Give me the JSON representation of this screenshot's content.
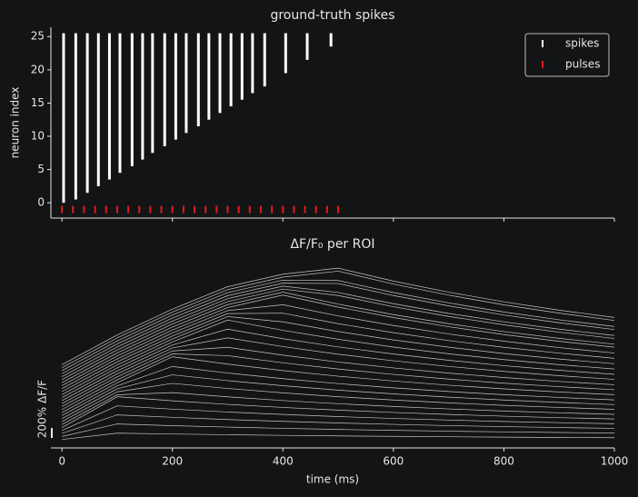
{
  "chart_data": [
    {
      "type": "raster",
      "title": "ground-truth spikes",
      "y_label": "neuron index",
      "xlim": [
        -20,
        1000
      ],
      "xticks": [
        0,
        200,
        400,
        600,
        800,
        1000
      ],
      "ylim": [
        -2.3,
        26.4
      ],
      "yticks": [
        0,
        5,
        10,
        15,
        20,
        25
      ],
      "legend": "upper right",
      "series": [
        {
          "name": "spikes",
          "color": "#ffffff",
          "x": [
            3,
            25,
            46,
            66,
            86,
            105,
            127,
            146,
            164,
            186,
            206,
            225,
            247,
            266,
            286,
            306,
            326,
            345,
            367,
            405,
            444,
            487
          ],
          "ymin": [
            0,
            0.5,
            1.5,
            2.5,
            3.5,
            4.5,
            5.5,
            6.5,
            7.5,
            8.5,
            9.5,
            10.5,
            11.5,
            12.5,
            13.5,
            14.5,
            15.5,
            16.5,
            17.5,
            19.5,
            21.5,
            23.5
          ],
          "ymax": [
            25.5,
            25.5,
            25.5,
            25.5,
            25.5,
            25.5,
            25.5,
            25.5,
            25.5,
            25.5,
            25.5,
            25.5,
            25.5,
            25.5,
            25.5,
            25.5,
            25.5,
            25.5,
            25.5,
            25.5,
            25.5,
            25.5
          ]
        },
        {
          "name": "pulses",
          "color": "#e31a1c",
          "x": [
            0,
            20,
            40,
            60,
            80,
            100,
            120,
            140,
            160,
            180,
            200,
            220,
            240,
            260,
            280,
            300,
            320,
            340,
            360,
            380,
            400,
            420,
            440,
            460,
            480,
            500
          ],
          "values": [
            -1,
            -1,
            -1,
            -1,
            -1,
            -1,
            -1,
            -1,
            -1,
            -1,
            -1,
            -1,
            -1,
            -1,
            -1,
            -1,
            -1,
            -1,
            -1,
            -1,
            -1,
            -1,
            -1,
            -1,
            -1,
            -1
          ]
        }
      ]
    },
    {
      "type": "line",
      "title": "ΔF/F₀ per ROI",
      "x_label": "time (ms)",
      "color": "#c4c4c4",
      "xlim": [
        -20,
        1000
      ],
      "xticks": [
        0,
        200,
        400,
        600,
        800,
        1000
      ],
      "ylim": [
        0,
        3700
      ],
      "scale_bar": {
        "value": 200,
        "label": "200% ΔF/F"
      },
      "x": [
        0,
        100,
        200,
        300,
        400,
        500,
        600,
        700,
        800,
        900,
        1000
      ],
      "series": [
        {
          "values": [
            170,
            296,
            279,
            265,
            252,
            241,
            232,
            224,
            216,
            210,
            205
          ]
        },
        {
          "values": [
            230,
            481,
            447,
            418,
            393,
            371,
            353,
            336,
            322,
            310,
            299
          ]
        },
        {
          "values": [
            290,
            663,
            614,
            570,
            533,
            501,
            473,
            448,
            427,
            409,
            393
          ]
        },
        {
          "values": [
            350,
            844,
            778,
            721,
            672,
            629,
            591,
            559,
            531,
            507,
            486
          ]
        },
        {
          "values": [
            410,
            1027,
            946,
            874,
            812,
            759,
            712,
            672,
            637,
            607,
            581
          ]
        },
        {
          "values": [
            470,
            1066,
            1110,
            1025,
            951,
            887,
            831,
            783,
            741,
            705,
            674
          ]
        },
        {
          "values": [
            530,
            1126,
            1295,
            1193,
            1105,
            1028,
            962,
            904,
            854,
            812,
            774
          ]
        },
        {
          "values": [
            590,
            1186,
            1466,
            1350,
            1248,
            1160,
            1085,
            1019,
            962,
            913,
            869
          ]
        },
        {
          "values": [
            650,
            1246,
            1634,
            1503,
            1390,
            1291,
            1205,
            1132,
            1068,
            1013,
            964
          ]
        },
        {
          "values": [
            710,
            1306,
            1830,
            1682,
            1552,
            1439,
            1343,
            1259,
            1185,
            1123,
            1068
          ]
        },
        {
          "values": [
            770,
            1366,
            1886,
            1851,
            1708,
            1583,
            1475,
            1381,
            1299,
            1229,
            1168
          ]
        },
        {
          "values": [
            830,
            1426,
            1946,
            2019,
            1861,
            1724,
            1605,
            1501,
            1413,
            1334,
            1268
          ]
        },
        {
          "values": [
            890,
            1486,
            2006,
            2208,
            2033,
            1880,
            1749,
            1635,
            1536,
            1449,
            1375
          ]
        },
        {
          "values": [
            950,
            1546,
            2066,
            2383,
            2192,
            2027,
            1884,
            1759,
            1651,
            1558,
            1476
          ]
        },
        {
          "values": [
            1010,
            1606,
            2126,
            2565,
            2359,
            2180,
            2023,
            1889,
            1772,
            1670,
            1583
          ]
        },
        {
          "values": [
            1070,
            1666,
            2186,
            2635,
            2529,
            2335,
            2167,
            2021,
            1894,
            1784,
            1689
          ]
        },
        {
          "values": [
            1130,
            1726,
            2246,
            2695,
            2703,
            2493,
            2312,
            2154,
            2018,
            1901,
            1798
          ]
        },
        {
          "values": [
            1190,
            1786,
            2306,
            2755,
            2873,
            2649,
            2456,
            2286,
            2141,
            2013,
            1904
          ]
        },
        {
          "values": [
            1250,
            1846,
            2366,
            2815,
            3066,
            2825,
            2615,
            2432,
            2274,
            2139,
            2021
          ]
        },
        {
          "values": [
            1310,
            1906,
            2426,
            2875,
            3126,
            2885,
            2675,
            2492,
            2334,
            2199,
            2081
          ]
        },
        {
          "values": [
            1370,
            1966,
            2486,
            2935,
            3186,
            3058,
            2833,
            2638,
            2470,
            2323,
            2195
          ]
        },
        {
          "values": [
            1430,
            2026,
            2546,
            2995,
            3246,
            3118,
            2893,
            2698,
            2530,
            2383,
            2255
          ]
        },
        {
          "values": [
            1490,
            2086,
            2606,
            3055,
            3306,
            3298,
            3057,
            2850,
            2667,
            2511,
            2375
          ]
        },
        {
          "values": [
            1550,
            2146,
            2666,
            3115,
            3366,
            3358,
            3117,
            2910,
            2727,
            2571,
            2435
          ]
        },
        {
          "values": [
            1610,
            2206,
            2726,
            3175,
            3426,
            3546,
            3287,
            3065,
            2871,
            2704,
            2558
          ]
        },
        {
          "values": [
            1670,
            2266,
            2786,
            3235,
            3486,
            3606,
            3347,
            3125,
            2931,
            2764,
            2618
          ]
        }
      ]
    }
  ]
}
